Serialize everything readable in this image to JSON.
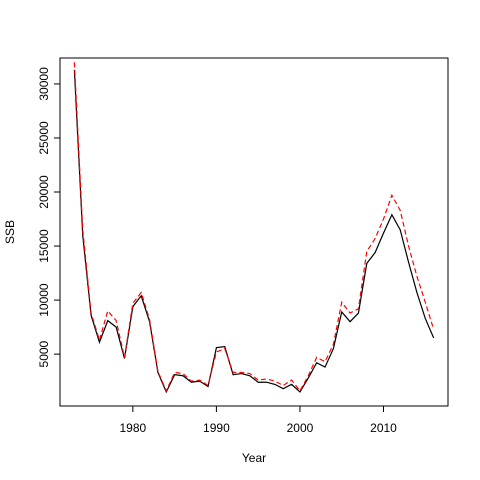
{
  "chart_data": {
    "type": "line",
    "xlabel": "Year",
    "ylabel": "SSB",
    "x": [
      1973,
      1974,
      1975,
      1976,
      1977,
      1978,
      1979,
      1980,
      1981,
      1982,
      1983,
      1984,
      1985,
      1986,
      1987,
      1988,
      1989,
      1990,
      1991,
      1992,
      1993,
      1994,
      1995,
      1996,
      1997,
      1998,
      1999,
      2000,
      2001,
      2002,
      2003,
      2004,
      2005,
      2006,
      2007,
      2008,
      2009,
      2010,
      2011,
      2012,
      2013,
      2014,
      2015,
      2016
    ],
    "series": [
      {
        "color": "#000000",
        "dash": "solid",
        "values": [
          31300,
          16000,
          8600,
          6100,
          8100,
          7500,
          4600,
          9400,
          10400,
          8000,
          3300,
          1500,
          3100,
          3000,
          2400,
          2500,
          2000,
          5600,
          5700,
          3100,
          3200,
          3000,
          2400,
          2400,
          2200,
          1800,
          2200,
          1500,
          2800,
          4200,
          3800,
          5500,
          8900,
          8000,
          8800,
          13400,
          14400,
          16200,
          17900,
          16500,
          13500,
          10700,
          8300,
          6500
        ]
      },
      {
        "color": "#ff0000",
        "dash": "dashed",
        "values": [
          32000,
          16500,
          8800,
          6300,
          9000,
          8100,
          4700,
          9700,
          10700,
          8200,
          3400,
          1600,
          3300,
          3200,
          2500,
          2600,
          2100,
          5200,
          5500,
          3300,
          3300,
          3200,
          2600,
          2700,
          2500,
          2100,
          2600,
          1600,
          3000,
          4700,
          4300,
          5900,
          9800,
          8800,
          9200,
          14500,
          15700,
          17500,
          19700,
          18300,
          15000,
          12200,
          9800,
          7300
        ]
      }
    ],
    "xlim": [
      1971.28,
      2017.72
    ],
    "xticks": [
      1980,
      1990,
      2000,
      2010
    ],
    "ylim": [
      200,
      32400
    ],
    "yticks": [
      5000,
      10000,
      15000,
      20000,
      25000,
      30000
    ]
  }
}
